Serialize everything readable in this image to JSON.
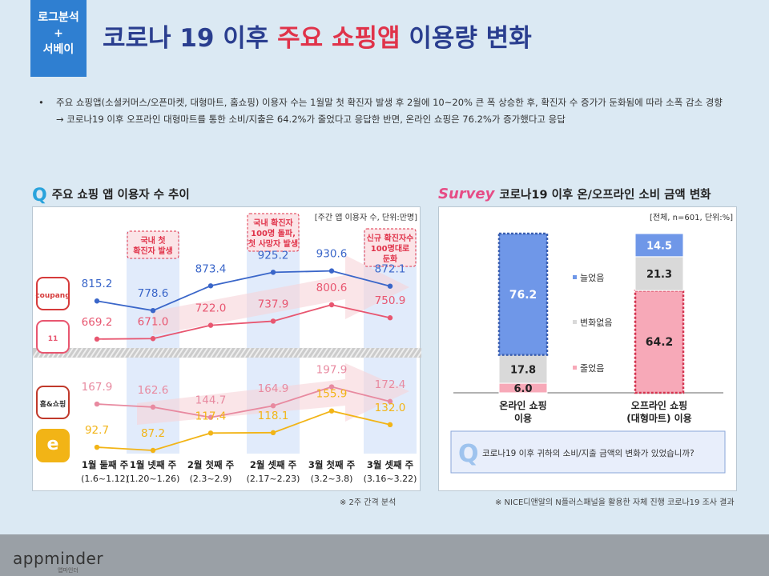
{
  "header": {
    "badge_line1": "로그분석",
    "badge_line2": "+",
    "badge_line3": "서베이",
    "title_part1": "코로나 19 이후 ",
    "title_highlight": "주요 쇼핑앱",
    "title_part2": " 이용량 변화"
  },
  "summary": {
    "bullet1": "주요 쇼핑앱(소셜커머스/오픈마켓, 대형마트, 홈쇼핑) 이용자 수는 1월말 첫 확진자 발생 후 2월에 10~20% 큰 폭 상승한 후, 확진자 수 증가가 둔화됨에 따라 소폭 감소 경향",
    "bullet2": "→  코로나19 이후 오프라인 대형마트를 통한 소비/지출은 64.2%가 줄었다고 응답한 반면, 온라인 쇼핑은 76.2%가 증가했다고 응답"
  },
  "left_section": {
    "title": "주요 쇼핑 앱 이용자 수 추이",
    "note": "※ 2주 간격 분석"
  },
  "right_section": {
    "title": "코로나19 이후 온/오프라인 소비 금액 변화",
    "survey_word": "Survey",
    "note": "※ NICE디앤알의 N플러스패널을 활용한 자체 진행 코로나19 조사 결과"
  },
  "footer": {
    "logo": "appminder",
    "logo_sub": "앱마인더"
  },
  "chart_data": [
    {
      "type": "line",
      "unit_label": "[주간 앱 이용자 수, 단위:만명]",
      "categories": [
        "1월 둘째 주",
        "1월 넷째 주",
        "2월 첫째 주",
        "2월 셋째 주",
        "3월 첫째 주",
        "3월 셋째 주"
      ],
      "category_ranges": [
        "(1.6~1.12)",
        "(1.20~1.26)",
        "(2.3~2.9)",
        "(2.17~2.23)",
        "(3.2~3.8)",
        "(3.16~3.22)"
      ],
      "series": [
        {
          "icon": "coupang-app-icon",
          "color": "#3a66c9",
          "values": [
            815.2,
            778.6,
            873.4,
            925.2,
            930.6,
            872.1
          ]
        },
        {
          "icon": "11st-app-icon",
          "color": "#e85670",
          "values": [
            669.2,
            671.0,
            722.0,
            737.9,
            800.6,
            750.9
          ]
        },
        {
          "icon": "homeshopping-app-icon",
          "color": "#e88aa0",
          "values": [
            167.9,
            162.6,
            144.7,
            164.9,
            197.9,
            172.4
          ]
        },
        {
          "icon": "emart-app-icon",
          "color": "#f2b416",
          "values": [
            92.7,
            87.2,
            117.4,
            118.1,
            155.9,
            132.0
          ]
        }
      ],
      "annotations": [
        {
          "category_index": 1,
          "text": [
            "국내 첫",
            "확진자 발생"
          ]
        },
        {
          "category_index": 3,
          "text": [
            "국내 확진자",
            "100명 돌파,",
            "첫 사망자 발생"
          ]
        },
        {
          "category_index": 5,
          "text": [
            "신규 확진자수",
            "100명대로",
            "둔화"
          ]
        }
      ],
      "highlight_columns": [
        1,
        3,
        5
      ],
      "colors": {
        "highlight": "#e1ebfb",
        "arrow": "#f6d3d8",
        "annotation": "#e0334a"
      }
    },
    {
      "type": "bar",
      "stacked": true,
      "unit_label": "[전체, n=601, 단위:%]",
      "categories": [
        [
          "온라인 쇼핑",
          "이용"
        ],
        [
          "오프라인 쇼핑",
          "(대형마트) 이용"
        ]
      ],
      "series": [
        {
          "name": "늘었음",
          "color": "#6f97e8",
          "values": [
            76.2,
            14.5
          ]
        },
        {
          "name": "변화없음",
          "color": "#d9d9d9",
          "values": [
            17.8,
            21.3
          ]
        },
        {
          "name": "줄었음",
          "color": "#f7a9b8",
          "values": [
            6.0,
            64.2
          ]
        }
      ],
      "question": "코로나19 이후 귀하의 소비/지출 금액의 변화가 있었습니까?",
      "question_mark": "Q"
    }
  ]
}
